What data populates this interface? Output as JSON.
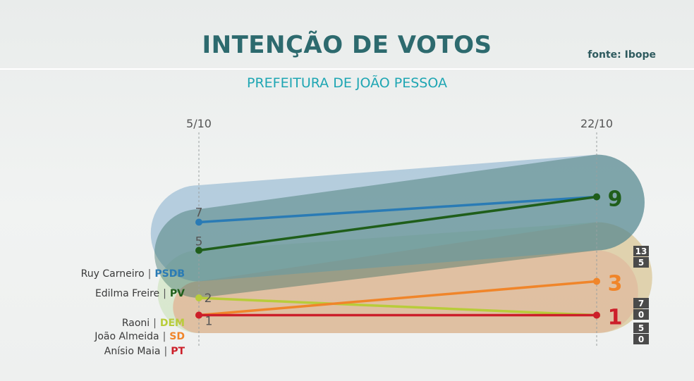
{
  "header": {
    "title": "INTENÇÃO DE VOTOS",
    "source": "fonte: Ibope",
    "subtitle": "PREFEITURA DE JOÃO PESSOA"
  },
  "colors": {
    "psdb": "#2a7bb5",
    "pv": "#1f5e1a",
    "dem": "#b8cc3a",
    "sd": "#f0852a",
    "pt": "#cc1f2a"
  },
  "chart_data": {
    "type": "line",
    "title": "INTENÇÃO DE VOTOS",
    "subtitle": "PREFEITURA DE JOÃO PESSOA",
    "x": [
      "5/10",
      "22/10"
    ],
    "series": [
      {
        "name": "Ruy Carneiro",
        "party": "PSDB",
        "values": [
          7,
          9
        ],
        "color": "#2a7bb5",
        "range": [
          5,
          13
        ],
        "range_labels": [
          "13",
          "5"
        ],
        "start_label": "7",
        "end_label": ""
      },
      {
        "name": "Edilma Freire",
        "party": "PV",
        "values": [
          5,
          9
        ],
        "color": "#1f5e1a",
        "range": [
          5,
          13
        ],
        "range_labels": [
          "13",
          "5"
        ],
        "start_label": "5",
        "end_label": "9"
      },
      {
        "name": "Raoni",
        "party": "DEM",
        "values": [
          2,
          1
        ],
        "color": "#b8cc3a",
        "range": [
          0,
          7
        ],
        "range_labels": [],
        "start_label": "2",
        "end_label": ""
      },
      {
        "name": "João Almeida",
        "party": "SD",
        "values": [
          1,
          3
        ],
        "color": "#f0852a",
        "range": [
          0,
          7
        ],
        "range_labels": [
          "7",
          "0"
        ],
        "start_label": "",
        "end_label": "3"
      },
      {
        "name": "Anísio Maia",
        "party": "PT",
        "values": [
          1,
          1
        ],
        "color": "#cc1f2a",
        "range": [
          0,
          5
        ],
        "range_labels": [
          "5",
          "0"
        ],
        "start_label": "1",
        "end_label": "1"
      }
    ]
  }
}
